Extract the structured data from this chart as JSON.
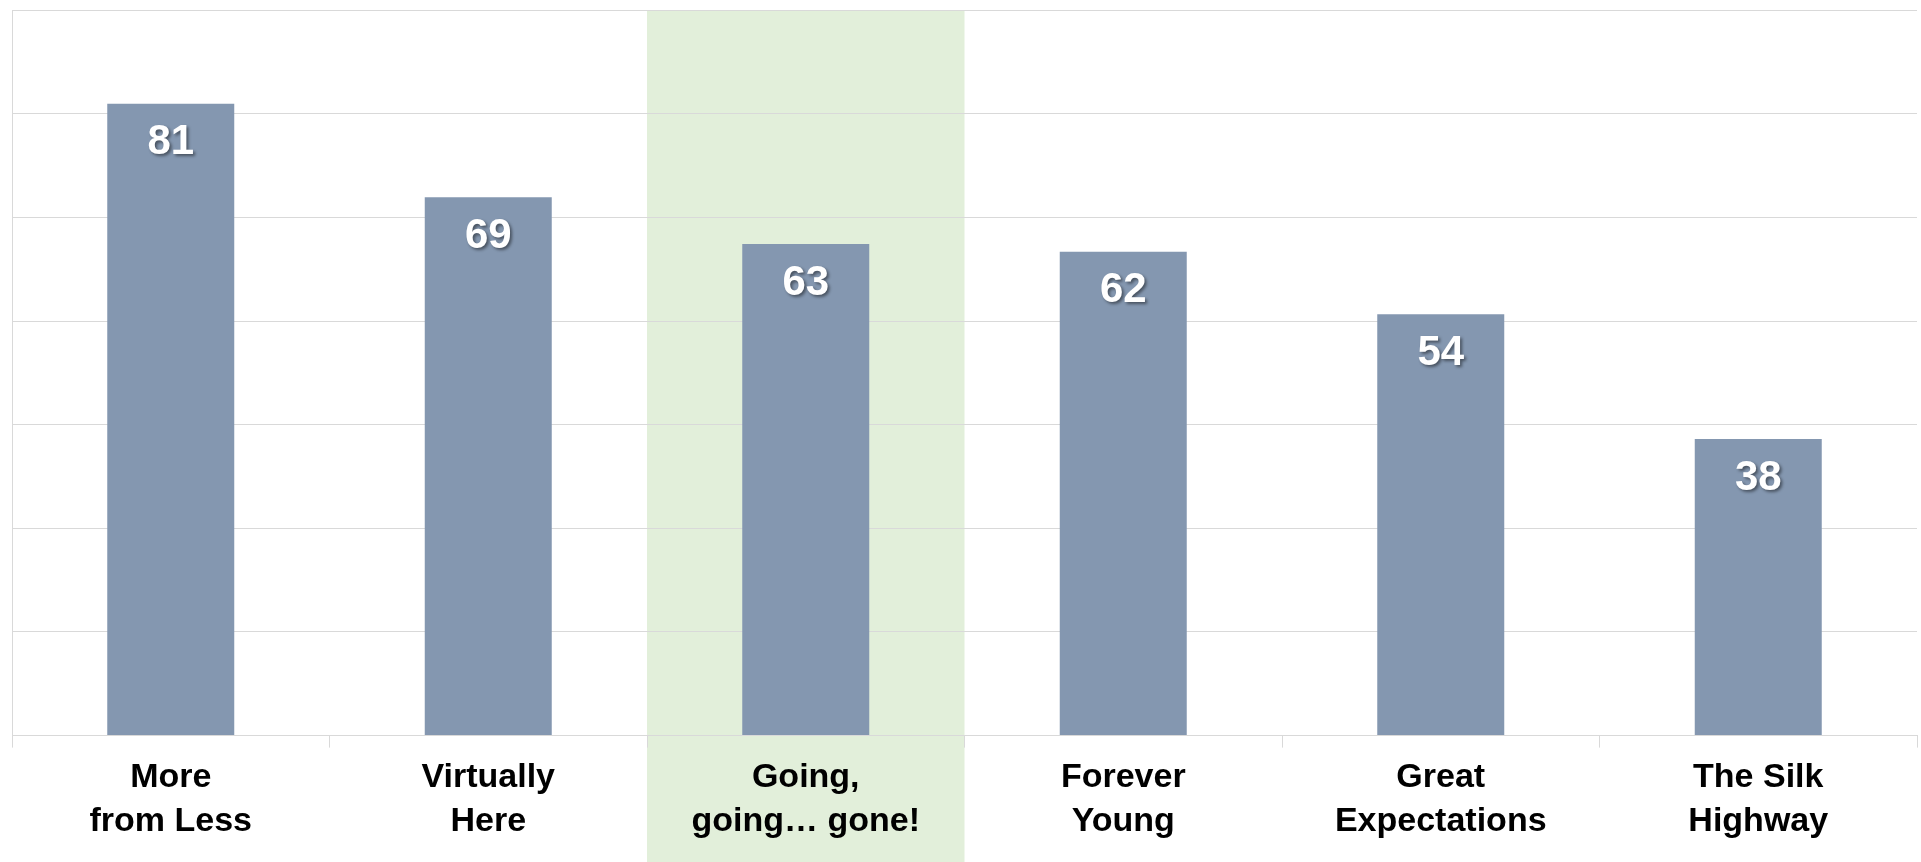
{
  "chart_data": {
    "type": "bar",
    "categories": [
      "More from Less",
      "Virtually Here",
      "Going, going… gone!",
      "Forever Young",
      "Great Expectations",
      "The Silk Highway"
    ],
    "values": [
      81,
      69,
      63,
      62,
      54,
      38
    ],
    "color": "#8497b0",
    "ylim": [
      0,
      93
    ],
    "yticks": [
      {
        "value": 0,
        "label": null
      },
      {
        "value": 13.3,
        "label": null
      },
      {
        "value": 26.6,
        "label": null
      },
      {
        "value": 39.9,
        "label": null
      },
      {
        "value": 53.1,
        "label": null
      },
      {
        "value": 66.4,
        "label": null
      },
      {
        "value": 79.7,
        "label": null
      },
      {
        "value": 93,
        "label": null
      }
    ],
    "tick_labels": "x",
    "grid": "y",
    "data_labels": true,
    "bands": [
      {
        "axis": "x",
        "from": "Going, going… gone!",
        "to": "Going, going… gone!",
        "color": "#e2efda"
      }
    ]
  }
}
